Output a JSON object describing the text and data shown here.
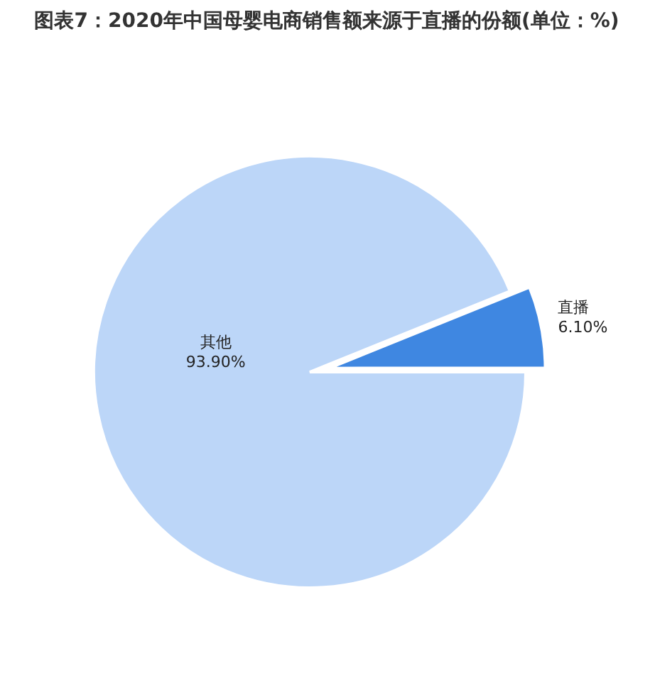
{
  "chart_data": {
    "type": "pie",
    "title": "图表7：2020年中国母婴电商销售额来源于直播的份额(单位：%)",
    "categories": [
      "直播",
      "其他"
    ],
    "values": [
      6.1,
      93.9
    ],
    "value_labels": [
      "6.10%",
      "93.90%"
    ],
    "colors": [
      "#3f87e1",
      "#bcd6f8"
    ]
  }
}
